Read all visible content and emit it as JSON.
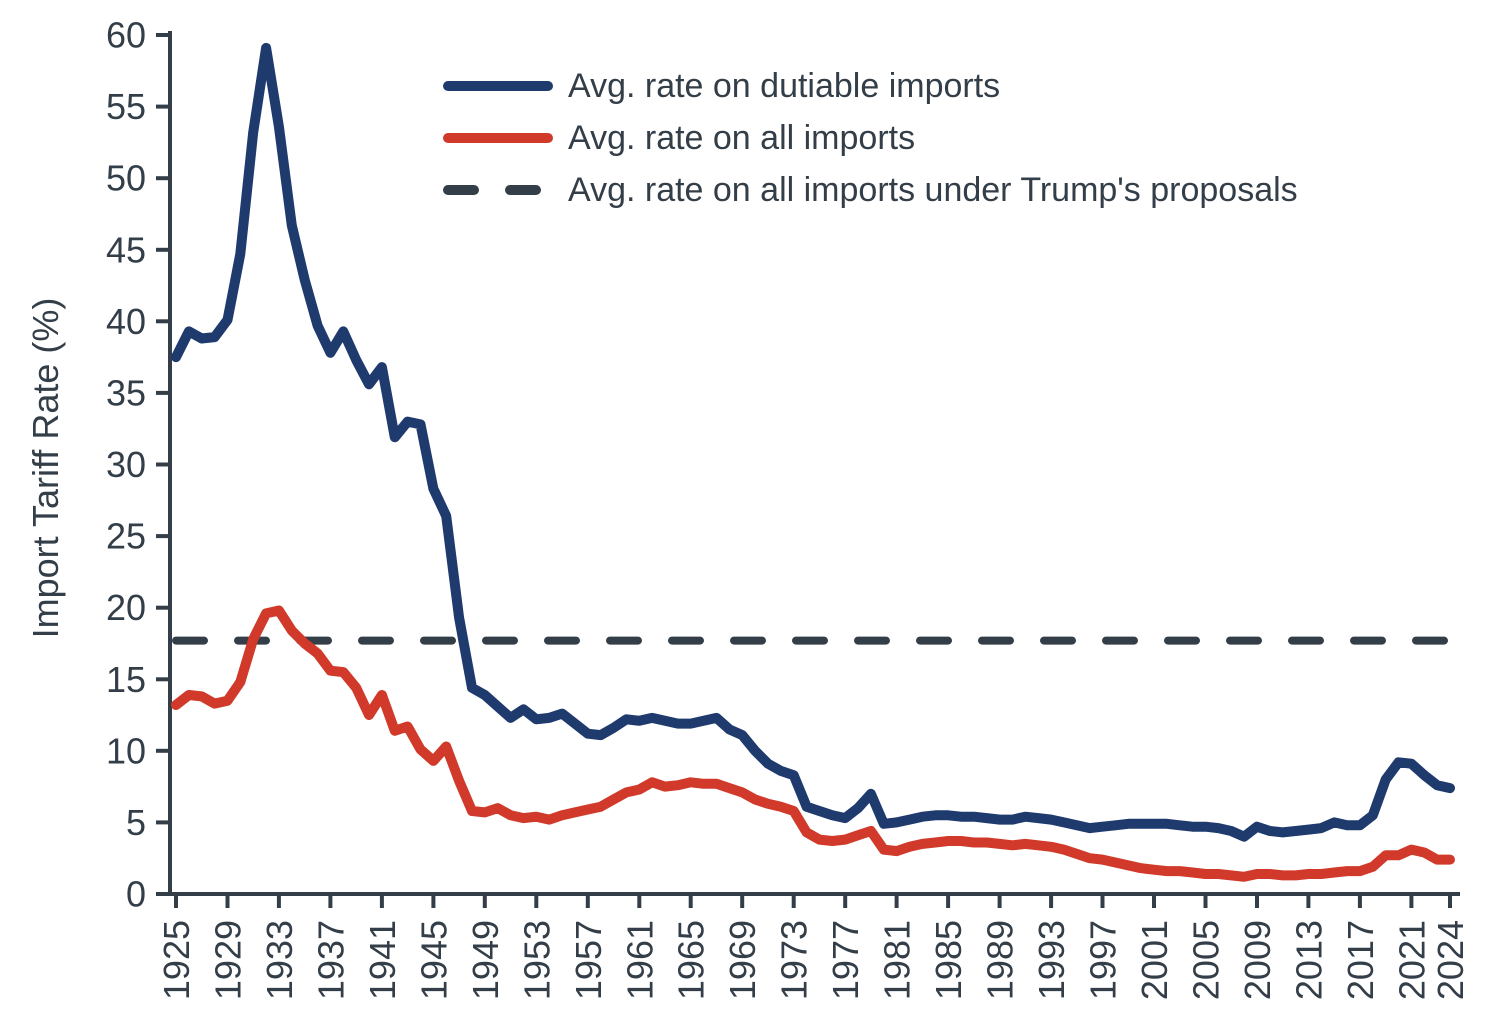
{
  "colors": {
    "dutiable": "#1f3a6d",
    "all_imports": "#d13a2b",
    "trump_proposal": "#333e48",
    "axis": "#333e48",
    "text": "#333e48",
    "background": "#ffffff"
  },
  "chart_data": {
    "type": "line",
    "title": "",
    "xlabel": "",
    "ylabel": "Import Tariff Rate (%)",
    "ylim": [
      0,
      60
    ],
    "yticks": [
      0,
      5,
      10,
      15,
      20,
      25,
      30,
      35,
      40,
      45,
      50,
      55,
      60
    ],
    "x_range": [
      1925,
      2024
    ],
    "xticks": [
      1925,
      1929,
      1933,
      1937,
      1941,
      1945,
      1949,
      1953,
      1957,
      1961,
      1965,
      1969,
      1973,
      1977,
      1981,
      1985,
      1989,
      1993,
      1997,
      2001,
      2005,
      2009,
      2013,
      2017,
      2021,
      2024
    ],
    "grid": false,
    "legend_position": "top-inside",
    "series": [
      {
        "key": "dutiable",
        "name": "Avg. rate on dutiable imports",
        "color": "#1f3a6d",
        "line_style": "solid",
        "x_start": 1925,
        "values": [
          37.5,
          39.3,
          38.8,
          38.9,
          40.1,
          44.7,
          53.2,
          59.1,
          53.6,
          46.7,
          42.9,
          39.7,
          37.8,
          39.3,
          37.3,
          35.6,
          36.8,
          31.9,
          33.0,
          32.8,
          28.3,
          26.4,
          19.3,
          14.4,
          13.9,
          13.1,
          12.3,
          12.9,
          12.2,
          12.3,
          12.6,
          11.9,
          11.2,
          11.1,
          11.6,
          12.2,
          12.1,
          12.3,
          12.1,
          11.9,
          11.9,
          12.1,
          12.3,
          11.5,
          11.1,
          10.0,
          9.1,
          8.6,
          8.3,
          6.1,
          5.8,
          5.5,
          5.3,
          6.0,
          7.0,
          4.9,
          5.0,
          5.2,
          5.4,
          5.5,
          5.5,
          5.4,
          5.4,
          5.3,
          5.2,
          5.2,
          5.4,
          5.3,
          5.2,
          5.0,
          4.8,
          4.6,
          4.7,
          4.8,
          4.9,
          4.9,
          4.9,
          4.9,
          4.8,
          4.7,
          4.7,
          4.6,
          4.4,
          4.0,
          4.7,
          4.4,
          4.3,
          4.4,
          4.5,
          4.6,
          5.0,
          4.8,
          4.8,
          5.5,
          8.0,
          9.2,
          9.1,
          8.3,
          7.6,
          7.4
        ]
      },
      {
        "key": "all-imports",
        "name": "Avg. rate on all imports",
        "color": "#d13a2b",
        "line_style": "solid",
        "x_start": 1925,
        "values": [
          13.2,
          13.9,
          13.8,
          13.3,
          13.5,
          14.8,
          17.8,
          19.6,
          19.8,
          18.4,
          17.5,
          16.8,
          15.6,
          15.5,
          14.4,
          12.5,
          13.9,
          11.4,
          11.7,
          10.1,
          9.3,
          10.3,
          7.9,
          5.8,
          5.7,
          6.0,
          5.5,
          5.3,
          5.4,
          5.2,
          5.5,
          5.7,
          5.9,
          6.1,
          6.6,
          7.1,
          7.3,
          7.8,
          7.5,
          7.6,
          7.8,
          7.7,
          7.7,
          7.4,
          7.1,
          6.6,
          6.3,
          6.1,
          5.8,
          4.3,
          3.8,
          3.7,
          3.8,
          4.1,
          4.4,
          3.1,
          3.0,
          3.3,
          3.5,
          3.6,
          3.7,
          3.7,
          3.6,
          3.6,
          3.5,
          3.4,
          3.5,
          3.4,
          3.3,
          3.1,
          2.8,
          2.5,
          2.4,
          2.2,
          2.0,
          1.8,
          1.7,
          1.6,
          1.6,
          1.5,
          1.4,
          1.4,
          1.3,
          1.2,
          1.4,
          1.4,
          1.3,
          1.3,
          1.4,
          1.4,
          1.5,
          1.6,
          1.6,
          1.9,
          2.7,
          2.7,
          3.1,
          2.9,
          2.4,
          2.4
        ]
      },
      {
        "key": "trump-proposal",
        "name": "Avg. rate on all imports under Trump's proposals",
        "color": "#333e48",
        "line_style": "dashed",
        "constant_value": 17.7
      }
    ]
  }
}
